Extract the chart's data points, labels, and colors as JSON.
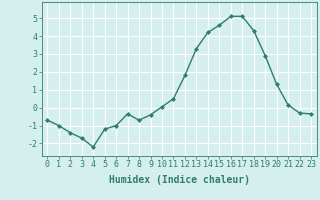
{
  "x": [
    0,
    1,
    2,
    3,
    4,
    5,
    6,
    7,
    8,
    9,
    10,
    11,
    12,
    13,
    14,
    15,
    16,
    17,
    18,
    19,
    20,
    21,
    22,
    23
  ],
  "y": [
    -0.7,
    -1.0,
    -1.4,
    -1.7,
    -2.2,
    -1.2,
    -1.0,
    -0.35,
    -0.7,
    -0.4,
    0.05,
    0.5,
    1.8,
    3.3,
    4.2,
    4.6,
    5.1,
    5.1,
    4.3,
    2.9,
    1.3,
    0.15,
    -0.3,
    -0.35
  ],
  "line_color": "#2e7d6e",
  "marker": "D",
  "marker_size": 2.0,
  "linewidth": 1.0,
  "xlabel": "Humidex (Indice chaleur)",
  "ylim": [
    -2.7,
    5.9
  ],
  "xlim": [
    -0.5,
    23.5
  ],
  "yticks": [
    -2,
    -1,
    0,
    1,
    2,
    3,
    4,
    5
  ],
  "xtick_labels": [
    "0",
    "1",
    "2",
    "3",
    "4",
    "5",
    "6",
    "7",
    "8",
    "9",
    "10",
    "11",
    "12",
    "13",
    "14",
    "15",
    "16",
    "17",
    "18",
    "19",
    "20",
    "21",
    "22",
    "23"
  ],
  "bg_color": "#d5efee",
  "grid_color": "#ffffff",
  "tick_color": "#2e7d6e",
  "label_color": "#2e7d6e",
  "font_size": 6.0,
  "xlabel_fontsize": 7.0
}
